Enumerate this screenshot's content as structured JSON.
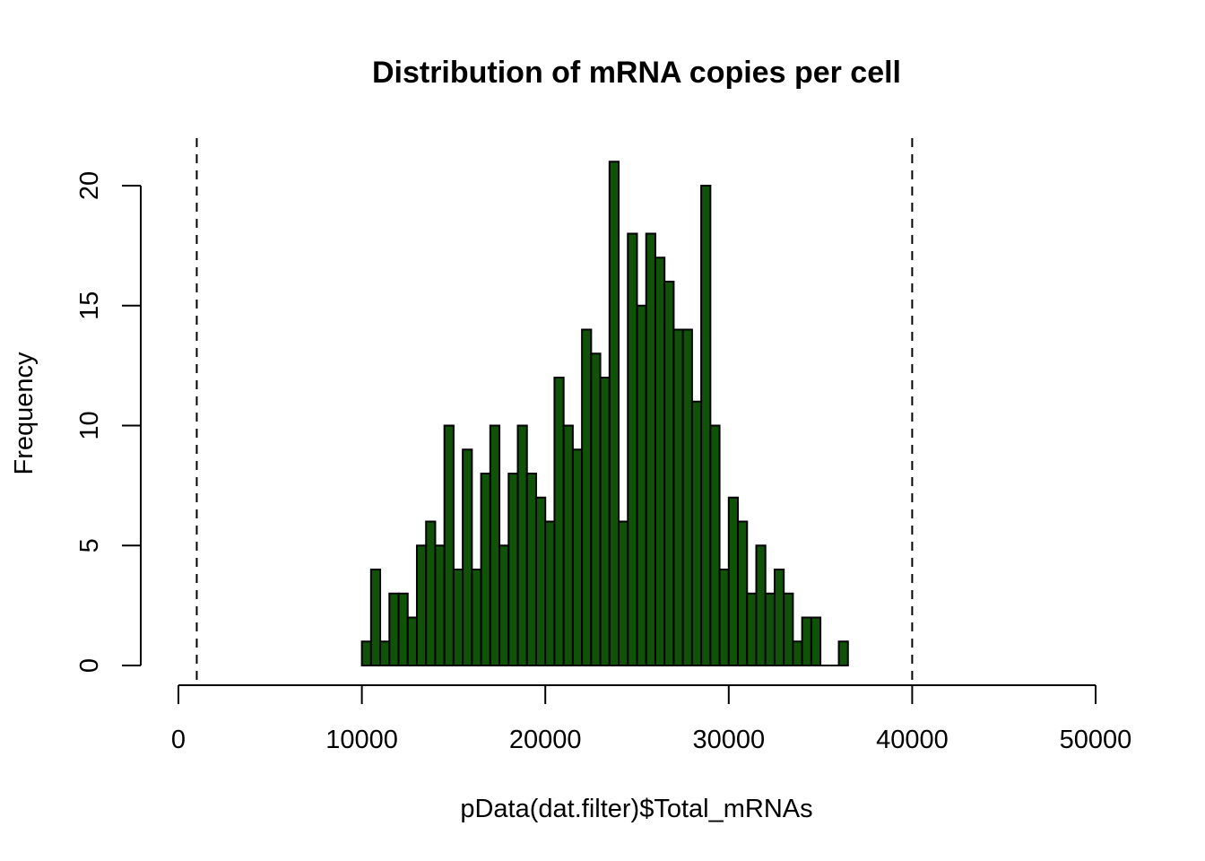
{
  "chart_data": {
    "type": "bar",
    "title": "Distribution of mRNA copies per cell",
    "xlabel": "pData(dat.filter)$Total_mRNAs",
    "ylabel": "Frequency",
    "xlim": [
      0,
      50000
    ],
    "ylim": [
      0,
      21
    ],
    "x_ticks": [
      0,
      10000,
      20000,
      30000,
      40000,
      50000
    ],
    "x_tick_labels": [
      "0",
      "10000",
      "20000",
      "30000",
      "40000",
      "50000"
    ],
    "y_ticks": [
      0,
      5,
      10,
      15,
      20
    ],
    "y_tick_labels": [
      "0",
      "5",
      "10",
      "15",
      "20"
    ],
    "bin_start": 10000,
    "bin_width": 500,
    "counts": [
      1,
      4,
      1,
      3,
      3,
      2,
      5,
      6,
      5,
      10,
      4,
      9,
      4,
      8,
      10,
      5,
      8,
      10,
      8,
      7,
      6,
      12,
      10,
      9,
      14,
      13,
      12,
      21,
      6,
      18,
      15,
      18,
      17,
      16,
      14,
      14,
      11,
      20,
      10,
      4,
      7,
      6,
      3,
      5,
      3,
      4,
      3,
      1,
      2,
      2,
      0,
      0,
      1
    ],
    "reference_lines": [
      1000,
      40000
    ],
    "bar_color": "#0f5208",
    "grid": false,
    "legend": "none"
  }
}
